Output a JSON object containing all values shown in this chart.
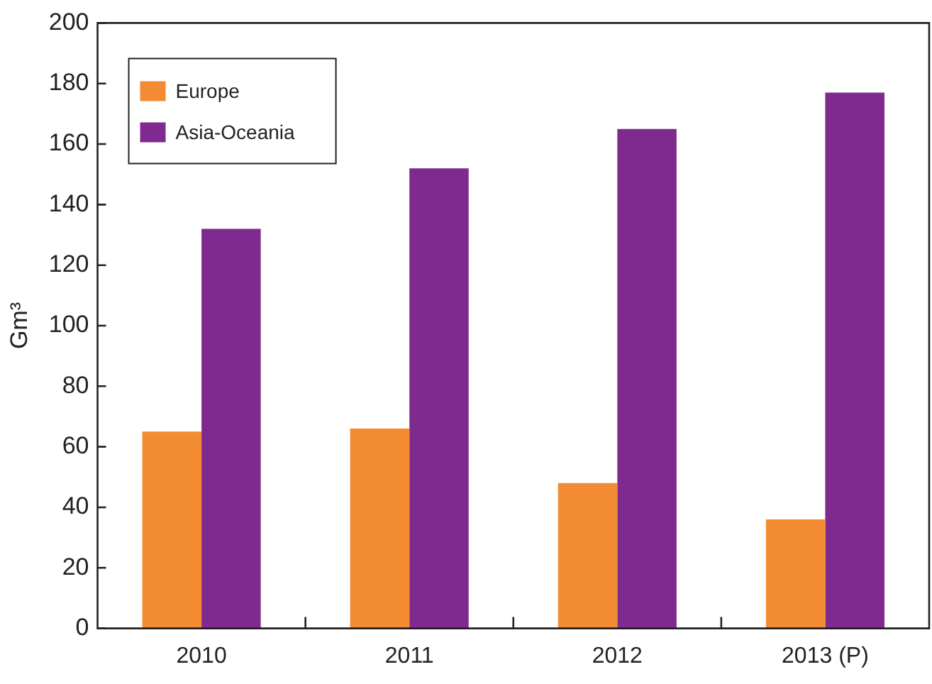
{
  "chart_data": {
    "type": "bar",
    "ylabel": "Gm³",
    "categories": [
      "2010",
      "2011",
      "2012",
      "2013 (P)"
    ],
    "series": [
      {
        "name": "Europe",
        "color": "#f38b33",
        "values": [
          65,
          66,
          48,
          36
        ]
      },
      {
        "name": "Asia-Oceania",
        "color": "#7f2a8e",
        "values": [
          132,
          152,
          165,
          177
        ]
      }
    ],
    "ylim": [
      0,
      200
    ],
    "yticks": [
      0,
      20,
      40,
      60,
      80,
      100,
      120,
      140,
      160,
      180,
      200
    ],
    "grid": false,
    "legend": "top left"
  }
}
